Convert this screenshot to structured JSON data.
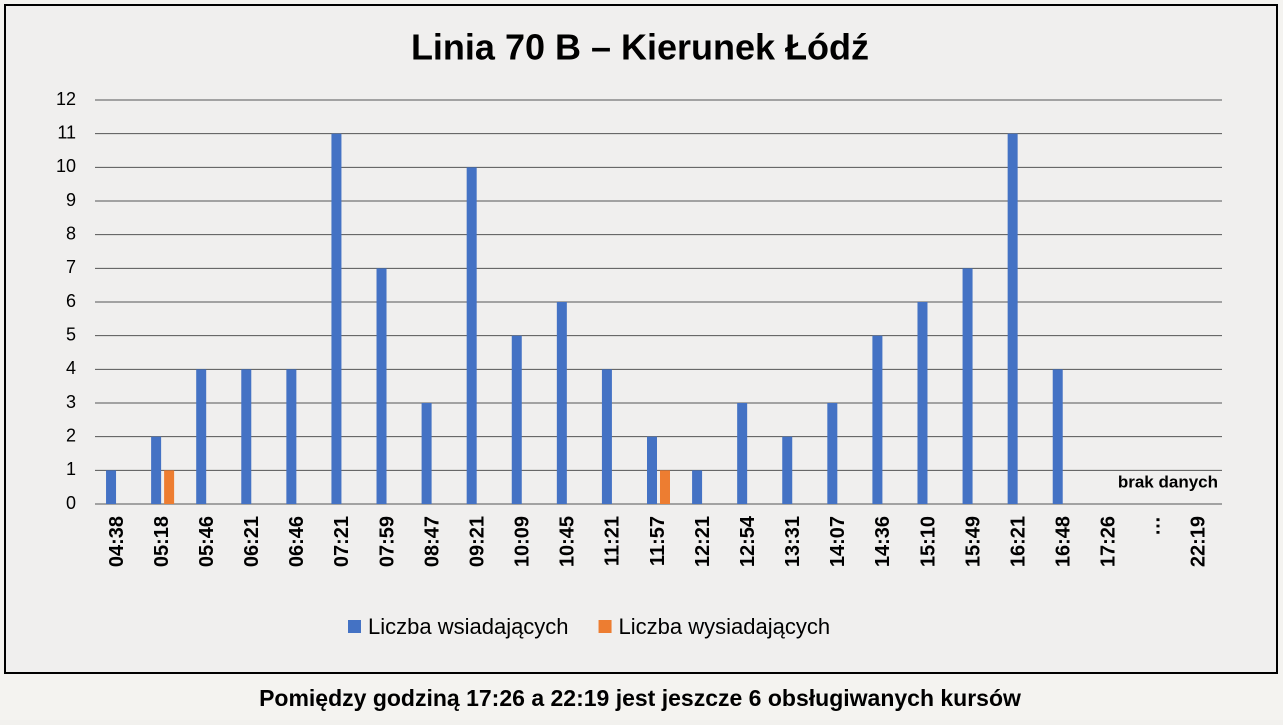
{
  "chart_data": {
    "type": "bar",
    "title": "Linia 70 B – Kierunek Łódź",
    "categories": [
      "04:38",
      "05:18",
      "05:46",
      "06:21",
      "06:46",
      "07:21",
      "07:59",
      "08:47",
      "09:21",
      "10:09",
      "10:45",
      "11:21",
      "11:57",
      "12:21",
      "12:54",
      "13:31",
      "14:07",
      "14:36",
      "15:10",
      "15:49",
      "16:21",
      "16:48",
      "17:26",
      "…",
      "22:19"
    ],
    "series": [
      {
        "name": "Liczba wsiadających",
        "color": "#4472c4",
        "values": [
          1,
          2,
          4,
          4,
          4,
          11,
          7,
          3,
          10,
          5,
          6,
          4,
          2,
          1,
          3,
          2,
          3,
          5,
          6,
          7,
          11,
          4,
          null,
          null,
          null
        ]
      },
      {
        "name": "Liczba wysiadających",
        "color": "#ed7d31",
        "values": [
          0,
          1,
          0,
          0,
          0,
          0,
          0,
          0,
          0,
          0,
          0,
          0,
          1,
          0,
          0,
          0,
          0,
          0,
          0,
          0,
          0,
          0,
          null,
          null,
          null
        ]
      }
    ],
    "ylim": [
      0,
      12
    ],
    "yticks": [
      0,
      1,
      2,
      3,
      4,
      5,
      6,
      7,
      8,
      9,
      10,
      11,
      12
    ],
    "grid": true,
    "legend": "bottom",
    "annotation": "brak danych"
  },
  "footer": {
    "text": "Pomiędzy godziną 17:26 a 22:19 jest jeszcze 6 obsługiwanych kursów"
  }
}
